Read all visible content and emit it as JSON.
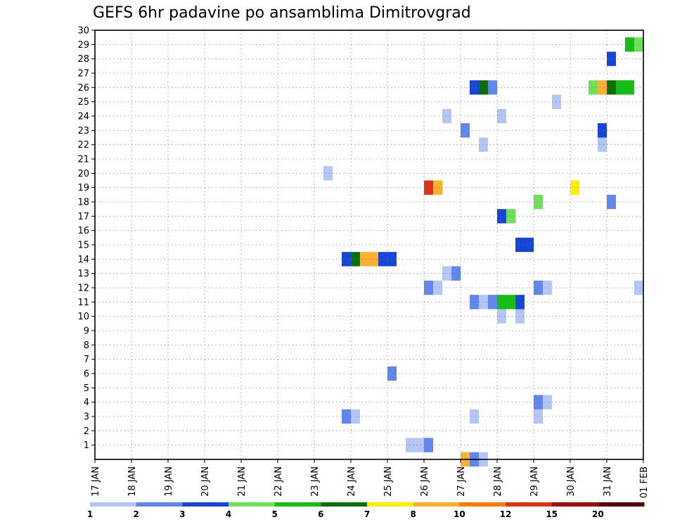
{
  "chart_data": {
    "type": "heatmap",
    "title": "GEFS 6hr padavine po ansamblima Dimitrovgrad",
    "x_tick_labels": [
      "17 JAN",
      "18 JAN",
      "19 JAN",
      "20 JAN",
      "21 JAN",
      "22 JAN",
      "23 JAN",
      "24 JAN",
      "25 JAN",
      "26 JAN",
      "27 JAN",
      "28 JAN",
      "29 JAN",
      "30 JAN",
      "31 JAN",
      "01 FEB"
    ],
    "xlim_days": [
      0,
      15
    ],
    "step_hours": 6,
    "y_tick_labels": [
      "1",
      "2",
      "3",
      "4",
      "5",
      "6",
      "7",
      "8",
      "9",
      "10",
      "11",
      "12",
      "13",
      "14",
      "15",
      "16",
      "17",
      "18",
      "19",
      "20",
      "21",
      "22",
      "23",
      "24",
      "25",
      "26",
      "27",
      "28",
      "29",
      "30"
    ],
    "ylim": [
      0,
      30
    ],
    "grid": true,
    "colorbar": {
      "labels": [
        "1",
        "2",
        "3",
        "4",
        "5",
        "6",
        "7",
        "8",
        "10",
        "12",
        "15",
        "20"
      ],
      "colors": [
        "#b4c6f5",
        "#5f87ee",
        "#1646d9",
        "#6ee05a",
        "#14be14",
        "#0a6e0a",
        "#ffee00",
        "#ffb02e",
        "#ff7a00",
        "#e03214",
        "#a00a0a",
        "#5a0000"
      ]
    },
    "cells": [
      {
        "member": 1,
        "day": "26 JAN",
        "step": 3,
        "value": 1.5
      },
      {
        "member": 1,
        "day": "26 JAN",
        "step": 4,
        "value": 1.5
      },
      {
        "member": 1,
        "day": "27 JAN",
        "step": 1,
        "value": 2.5
      },
      {
        "member": 0,
        "day": "28 JAN",
        "step": 1,
        "value": 8.5
      },
      {
        "member": 0,
        "day": "28 JAN",
        "step": 2,
        "value": 2.5
      },
      {
        "member": 0,
        "day": "28 JAN",
        "step": 3,
        "value": 1.5
      },
      {
        "member": 3,
        "day": "24 JAN",
        "step": 4,
        "value": 2.5
      },
      {
        "member": 3,
        "day": "25 JAN",
        "step": 1,
        "value": 1.5
      },
      {
        "member": 3,
        "day": "28 JAN",
        "step": 2,
        "value": 1.5
      },
      {
        "member": 3,
        "day": "30 JAN",
        "step": 1,
        "value": 1.5
      },
      {
        "member": 4,
        "day": "30 JAN",
        "step": 1,
        "value": 2.5
      },
      {
        "member": 4,
        "day": "30 JAN",
        "step": 2,
        "value": 1.5
      },
      {
        "member": 6,
        "day": "26 JAN",
        "step": 1,
        "value": 2.5
      },
      {
        "member": 10,
        "day": "29 JAN",
        "step": 1,
        "value": 1.5
      },
      {
        "member": 10,
        "day": "29 JAN",
        "step": 3,
        "value": 1.5
      },
      {
        "member": 11,
        "day": "28 JAN",
        "step": 2,
        "value": 2.5
      },
      {
        "member": 11,
        "day": "28 JAN",
        "step": 3,
        "value": 1.5
      },
      {
        "member": 11,
        "day": "28 JAN",
        "step": 4,
        "value": 2.5
      },
      {
        "member": 11,
        "day": "29 JAN",
        "step": 1,
        "value": 5.5
      },
      {
        "member": 11,
        "day": "29 JAN",
        "step": 2,
        "value": 5.5
      },
      {
        "member": 11,
        "day": "29 JAN",
        "step": 3,
        "value": 3.5
      },
      {
        "member": 12,
        "day": "27 JAN",
        "step": 1,
        "value": 2.5
      },
      {
        "member": 12,
        "day": "27 JAN",
        "step": 2,
        "value": 1.5
      },
      {
        "member": 12,
        "day": "30 JAN",
        "step": 1,
        "value": 2.5
      },
      {
        "member": 12,
        "day": "30 JAN",
        "step": 2,
        "value": 1.5
      },
      {
        "member": 12,
        "day": "01 FEB",
        "step": 4,
        "value": 1.5
      },
      {
        "member": 13,
        "day": "27 JAN",
        "step": 3,
        "value": 1.5
      },
      {
        "member": 13,
        "day": "27 JAN",
        "step": 4,
        "value": 2.5
      },
      {
        "member": 14,
        "day": "24 JAN",
        "step": 4,
        "value": 3.5
      },
      {
        "member": 14,
        "day": "25 JAN",
        "step": 1,
        "value": 6.5
      },
      {
        "member": 14,
        "day": "25 JAN",
        "step": 2,
        "value": 9
      },
      {
        "member": 14,
        "day": "25 JAN",
        "step": 3,
        "value": 9
      },
      {
        "member": 14,
        "day": "25 JAN",
        "step": 4,
        "value": 3.5
      },
      {
        "member": 14,
        "day": "26 JAN",
        "step": 1,
        "value": 3.5
      },
      {
        "member": 15,
        "day": "29 JAN",
        "step": 3,
        "value": 3.5
      },
      {
        "member": 15,
        "day": "29 JAN",
        "step": 4,
        "value": 3.5
      },
      {
        "member": 17,
        "day": "29 JAN",
        "step": 1,
        "value": 3.5
      },
      {
        "member": 17,
        "day": "29 JAN",
        "step": 2,
        "value": 4.5
      },
      {
        "member": 18,
        "day": "30 JAN",
        "step": 1,
        "value": 4.5
      },
      {
        "member": 18,
        "day": "01 FEB",
        "step": 1,
        "value": 2.5
      },
      {
        "member": 19,
        "day": "27 JAN",
        "step": 1,
        "value": 13
      },
      {
        "member": 19,
        "day": "27 JAN",
        "step": 2,
        "value": 9
      },
      {
        "member": 19,
        "day": "31 JAN",
        "step": 1,
        "value": 7.5
      },
      {
        "member": 20,
        "day": "24 JAN",
        "step": 2,
        "value": 1.5
      },
      {
        "member": 22,
        "day": "28 JAN",
        "step": 3,
        "value": 1.5
      },
      {
        "member": 22,
        "day": "31 JAN",
        "step": 4,
        "value": 1.5
      },
      {
        "member": 23,
        "day": "28 JAN",
        "step": 1,
        "value": 2.5
      },
      {
        "member": 23,
        "day": "31 JAN",
        "step": 4,
        "value": 3.5
      },
      {
        "member": 24,
        "day": "27 JAN",
        "step": 3,
        "value": 1.5
      },
      {
        "member": 24,
        "day": "29 JAN",
        "step": 1,
        "value": 1.5
      },
      {
        "member": 25,
        "day": "30 JAN",
        "step": 3,
        "value": 1.5
      },
      {
        "member": 26,
        "day": "28 JAN",
        "step": 2,
        "value": 3.5
      },
      {
        "member": 26,
        "day": "28 JAN",
        "step": 3,
        "value": 6.5
      },
      {
        "member": 26,
        "day": "28 JAN",
        "step": 4,
        "value": 2.5
      },
      {
        "member": 26,
        "day": "31 JAN",
        "step": 3,
        "value": 4.5
      },
      {
        "member": 26,
        "day": "31 JAN",
        "step": 4,
        "value": 9
      },
      {
        "member": 26,
        "day": "01 FEB",
        "step": 1,
        "value": 6.5
      },
      {
        "member": 26,
        "day": "01 FEB",
        "step": 2,
        "value": 5.5
      },
      {
        "member": 26,
        "day": "01 FEB",
        "step": 3,
        "value": 5.5
      },
      {
        "member": 28,
        "day": "01 FEB",
        "step": 1,
        "value": 3.5
      },
      {
        "member": 29,
        "day": "01 FEB",
        "step": 3,
        "value": 5.5
      },
      {
        "member": 29,
        "day": "01 FEB",
        "step": 4,
        "value": 4.5
      }
    ]
  }
}
